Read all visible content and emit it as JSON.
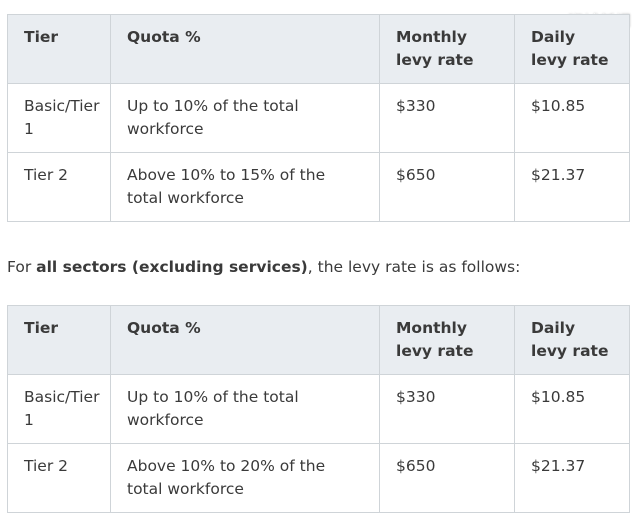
{
  "watermark": "狮城新闻",
  "tables": [
    {
      "headers": [
        "Tier",
        "Quota %",
        "Monthly levy rate",
        "Daily levy rate"
      ],
      "rows": [
        [
          "Basic/Tier 1",
          "Up to 10% of the total workforce",
          "$330",
          "$10.85"
        ],
        [
          "Tier 2",
          "Above 10% to 15% of the total workforce",
          "$650",
          "$21.37"
        ]
      ]
    },
    {
      "headers": [
        "Tier",
        "Quota %",
        "Monthly levy rate",
        "Daily levy rate"
      ],
      "rows": [
        [
          "Basic/Tier 1",
          "Up to 10% of the total workforce",
          "$330",
          "$10.85"
        ],
        [
          "Tier 2",
          "Above 10% to 20% of the total workforce",
          "$650",
          "$21.37"
        ]
      ]
    }
  ],
  "intro": {
    "prefix": "For ",
    "bold": "all sectors (excluding services)",
    "suffix": ", the levy rate is as follows:"
  }
}
